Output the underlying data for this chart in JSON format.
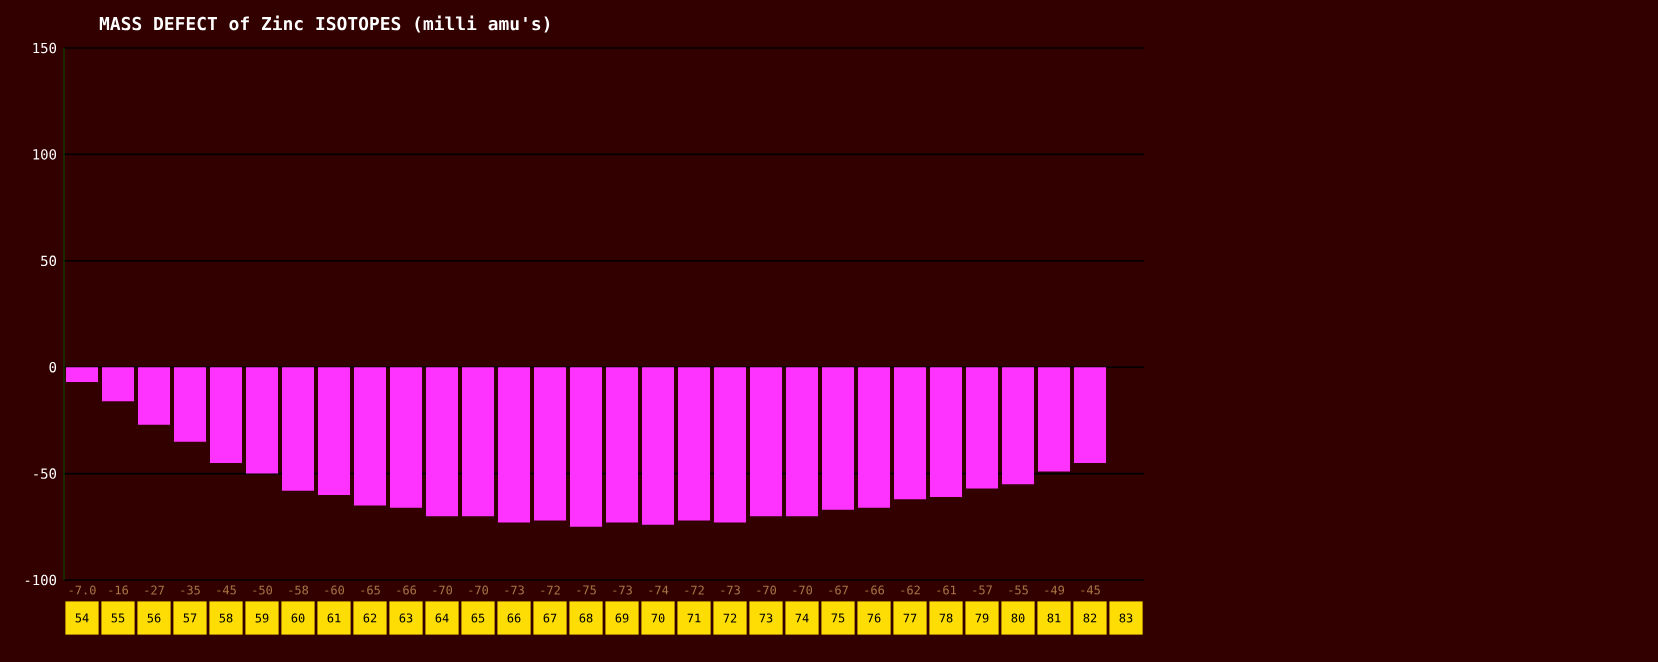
{
  "chart_data": {
    "type": "bar",
    "title": "MASS DEFECT of Zinc ISOTOPES (milli amu's)",
    "categories": [
      "54",
      "55",
      "56",
      "57",
      "58",
      "59",
      "60",
      "61",
      "62",
      "63",
      "64",
      "65",
      "66",
      "67",
      "68",
      "69",
      "70",
      "71",
      "72",
      "73",
      "74",
      "75",
      "76",
      "77",
      "78",
      "79",
      "80",
      "81",
      "82",
      "83"
    ],
    "values": [
      -7.0,
      -16,
      -27,
      -35,
      -45,
      -50,
      -58,
      -60,
      -65,
      -66,
      -70,
      -70,
      -73,
      -72,
      -75,
      -73,
      -74,
      -72,
      -73,
      -70,
      -70,
      -67,
      -66,
      -62,
      -61,
      -57,
      -55,
      -49,
      -45,
      null
    ],
    "value_labels": [
      "-7.0",
      "-16",
      "-27",
      "-35",
      "-45",
      "-50",
      "-58",
      "-60",
      "-65",
      "-66",
      "-70",
      "-70",
      "-73",
      "-72",
      "-75",
      "-73",
      "-74",
      "-72",
      "-73",
      "-70",
      "-70",
      "-67",
      "-66",
      "-62",
      "-61",
      "-57",
      "-55",
      "-49",
      "-45",
      null
    ],
    "color": "#ff33ff",
    "ylim": [
      -100,
      150
    ],
    "yticks": [
      -100,
      -50,
      0,
      50,
      100,
      150
    ],
    "grid": "y"
  }
}
